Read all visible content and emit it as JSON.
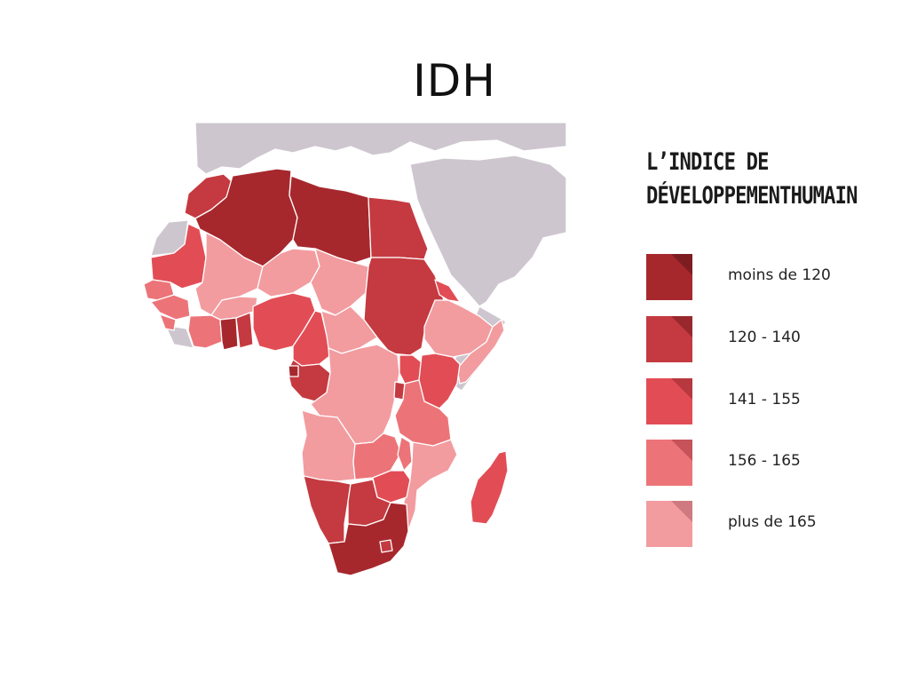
{
  "title": "IDH",
  "legend": {
    "heading_line1": "L’indice de",
    "heading_line2": "développementhumain",
    "classes": [
      {
        "label": "moins de 120",
        "color": "#a6282d",
        "fold": "#7e1d21"
      },
      {
        "label": "120 - 140",
        "color": "#c43a40",
        "fold": "#98282d"
      },
      {
        "label": "141 - 155",
        "color": "#e24d55",
        "fold": "#b8383f"
      },
      {
        "label": "156 - 165",
        "color": "#ec7478",
        "fold": "#c65359"
      },
      {
        "label": "plus de 165",
        "color": "#f29ca0",
        "fold": "#cf7a80"
      }
    ]
  },
  "map": {
    "background_land_color": "#cec6cf",
    "border_color": "#ffffff"
  }
}
